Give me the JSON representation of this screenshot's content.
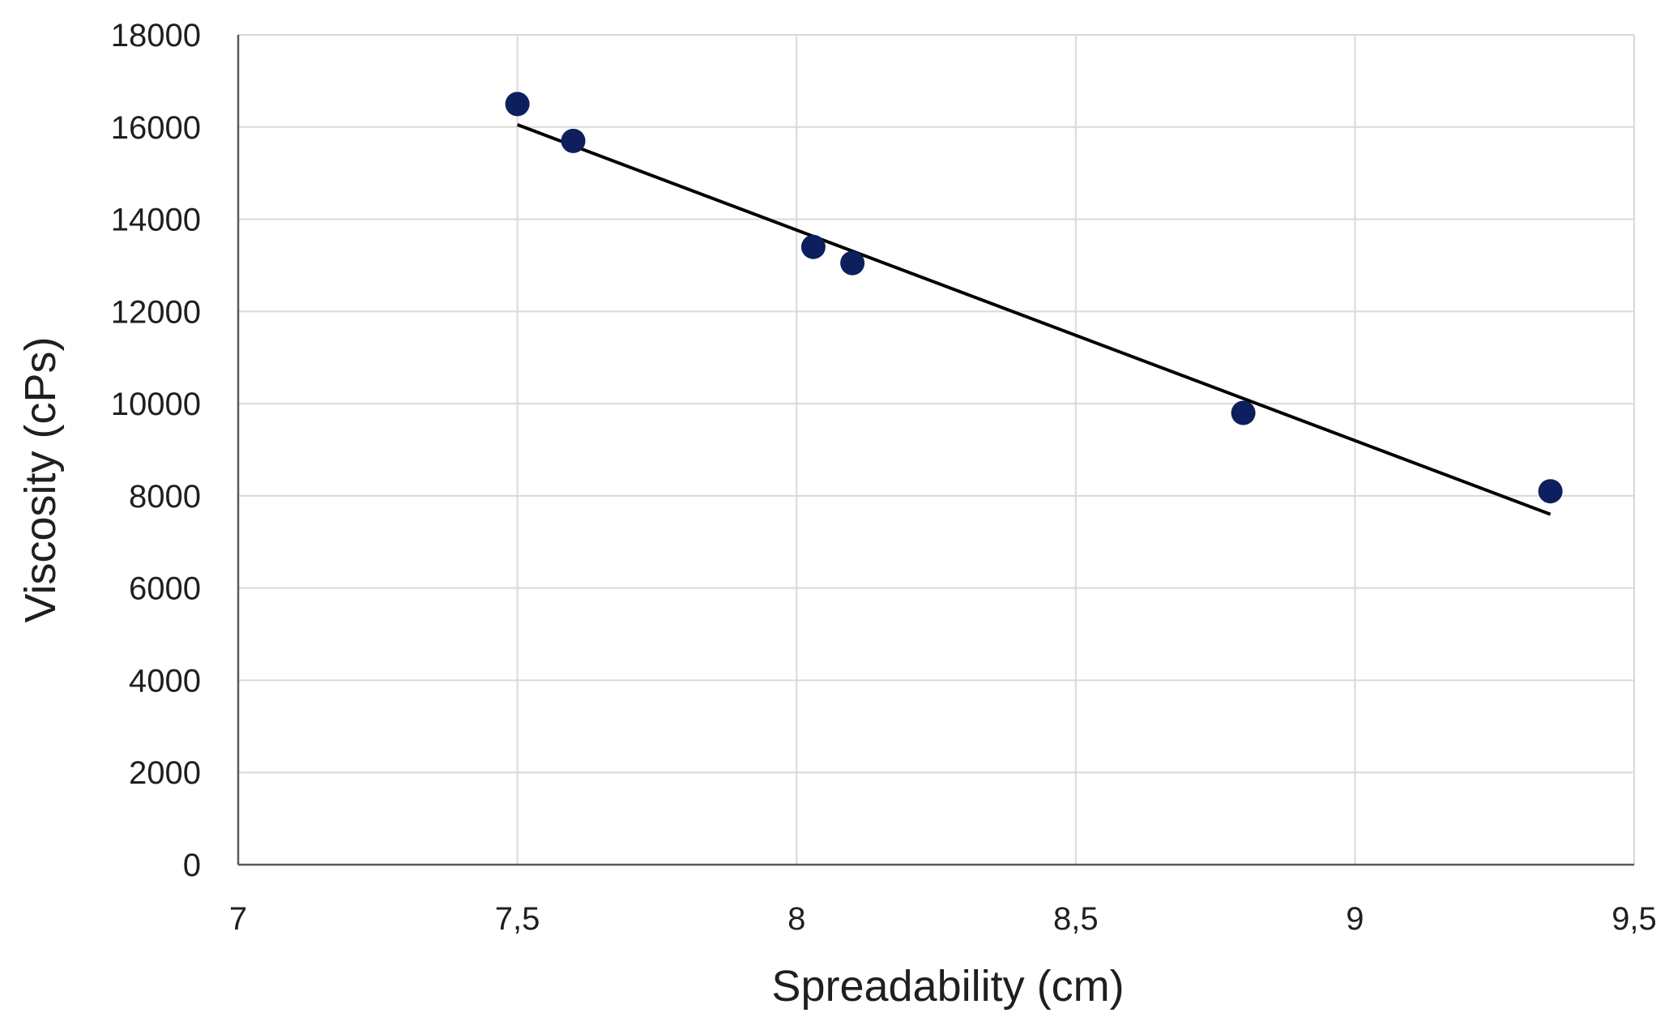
{
  "chart_data": {
    "type": "scatter",
    "xlabel": "Spreadability (cm)",
    "ylabel": "Viscosity (cPs)",
    "xlim": [
      7,
      9.5
    ],
    "ylim": [
      0,
      18000
    ],
    "x_ticks": [
      "7",
      "7,5",
      "8",
      "8,5",
      "9",
      "9,5"
    ],
    "y_ticks": [
      "0",
      "2000",
      "4000",
      "6000",
      "8000",
      "10000",
      "12000",
      "14000",
      "16000",
      "18000"
    ],
    "grid": true,
    "legend": "none",
    "marker_color": "#0d1f5c",
    "trendline_color": "#000000",
    "series": [
      {
        "points": [
          {
            "x": 7.5,
            "y": 16500
          },
          {
            "x": 7.6,
            "y": 15700
          },
          {
            "x": 8.03,
            "y": 13400
          },
          {
            "x": 8.1,
            "y": 13050
          },
          {
            "x": 8.8,
            "y": 9800
          },
          {
            "x": 9.35,
            "y": 8100
          }
        ]
      }
    ],
    "trendline": {
      "type": "linear",
      "x_start": 7.5,
      "y_start": 16050,
      "x_end": 9.35,
      "y_end": 7600
    }
  }
}
